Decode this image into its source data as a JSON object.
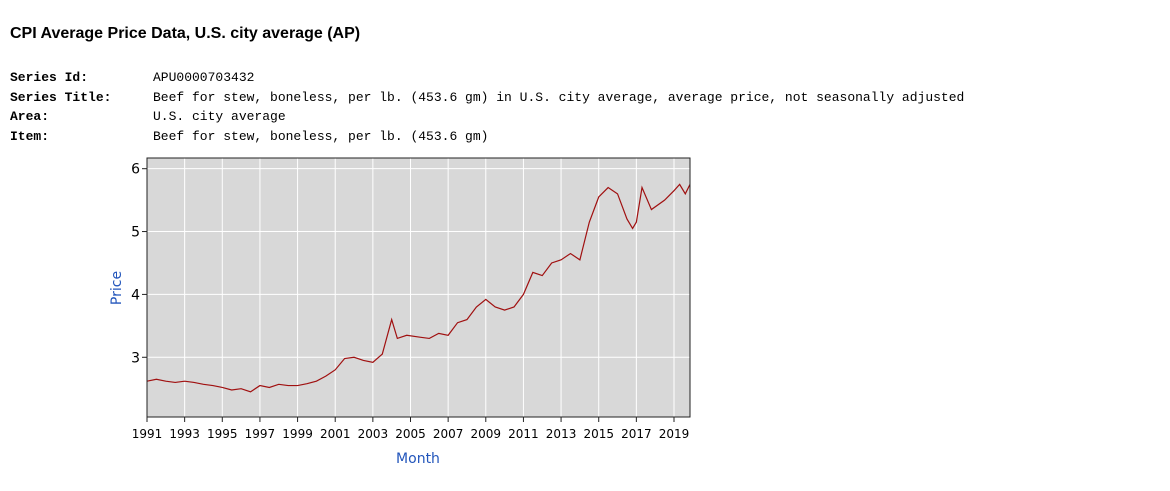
{
  "header": {
    "title": "CPI Average Price Data, U.S. city average (AP)",
    "fields": [
      {
        "label": "Series Id:",
        "value": "APU0000703432"
      },
      {
        "label": "Series Title:",
        "value": "Beef for stew, boneless, per lb. (453.6 gm) in U.S. city average, average price, not seasonally adjusted"
      },
      {
        "label": "Area:",
        "value": "U.S. city average"
      },
      {
        "label": "Item:",
        "value": "Beef for stew, boneless, per lb. (453.6 gm)"
      }
    ]
  },
  "chart_data": {
    "type": "line",
    "x_label": "Month",
    "y_label": "Price",
    "color": "#a01010",
    "grid": true,
    "x": [
      1991,
      1991.5,
      1992,
      1992.5,
      1993,
      1993.5,
      1994,
      1994.5,
      1995,
      1995.5,
      1996,
      1996.5,
      1997,
      1997.5,
      1998,
      1998.5,
      1999,
      1999.5,
      2000,
      2000.5,
      2001,
      2001.5,
      2002,
      2002.5,
      2003,
      2003.5,
      2004,
      2004.3,
      2004.8,
      2005.5,
      2006,
      2006.5,
      2007,
      2007.5,
      2008,
      2008.5,
      2009,
      2009.5,
      2010,
      2010.5,
      2011,
      2011.5,
      2012,
      2012.5,
      2013,
      2013.5,
      2014,
      2014.5,
      2015,
      2015.5,
      2016,
      2016.5,
      2016.8,
      2017,
      2017.3,
      2017.8,
      2018.5,
      2019,
      2019.3,
      2019.6,
      2019.85
    ],
    "values": [
      2.62,
      2.65,
      2.62,
      2.6,
      2.62,
      2.6,
      2.57,
      2.55,
      2.52,
      2.48,
      2.5,
      2.45,
      2.55,
      2.52,
      2.57,
      2.55,
      2.55,
      2.58,
      2.62,
      2.7,
      2.8,
      2.98,
      3.0,
      2.95,
      2.92,
      3.05,
      3.6,
      3.3,
      3.35,
      3.32,
      3.3,
      3.38,
      3.35,
      3.55,
      3.6,
      3.8,
      3.92,
      3.8,
      3.75,
      3.8,
      4.0,
      4.35,
      4.3,
      4.5,
      4.55,
      4.65,
      4.55,
      5.15,
      5.55,
      5.7,
      5.6,
      5.2,
      5.05,
      5.15,
      5.7,
      5.35,
      5.5,
      5.65,
      5.75,
      5.6,
      5.75
    ],
    "xlim": [
      1991,
      2019.85
    ],
    "xticks": [
      1991,
      1993,
      1995,
      1997,
      1999,
      2001,
      2003,
      2005,
      2007,
      2009,
      2011,
      2013,
      2015,
      2017,
      2019
    ],
    "ylim": [
      2.05,
      6.17
    ],
    "yticks": [
      3,
      4,
      5,
      6
    ]
  }
}
